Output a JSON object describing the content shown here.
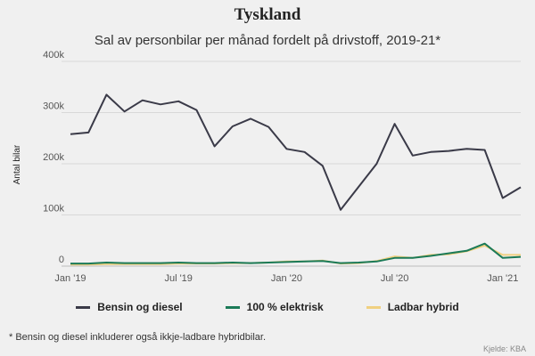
{
  "title": "Tyskland",
  "subtitle": "Sal av personbilar per månad fordelt på drivstoff, 2019-21*",
  "footnote": "* Bensin og diesel inkluderer også ikkje-ladbare hybridbilar.",
  "source": "Kjelde: KBA",
  "colors": {
    "background": "#f0f0f0",
    "grid": "#d8d8d8",
    "bensin": "#3a3a48",
    "elektrisk": "#1b7a57",
    "hybrid": "#f0d080"
  },
  "chart_data": {
    "type": "line",
    "title": "Tyskland",
    "xlabel": "",
    "ylabel": "Antal bilar",
    "ylim": [
      0,
      400000
    ],
    "yticks": [
      0,
      100000,
      200000,
      300000,
      400000
    ],
    "ytick_labels": [
      "0",
      "100k",
      "200k",
      "300k",
      "400k"
    ],
    "xtick_labels": [
      {
        "index": 0,
        "label": "Jan '19"
      },
      {
        "index": 6,
        "label": "Jul '19"
      },
      {
        "index": 12,
        "label": "Jan '20"
      },
      {
        "index": 18,
        "label": "Jul '20"
      },
      {
        "index": 24,
        "label": "Jan '21"
      }
    ],
    "x": [
      "2019-01",
      "2019-02",
      "2019-03",
      "2019-04",
      "2019-05",
      "2019-06",
      "2019-07",
      "2019-08",
      "2019-09",
      "2019-10",
      "2019-11",
      "2019-12",
      "2020-01",
      "2020-02",
      "2020-03",
      "2020-04",
      "2020-05",
      "2020-06",
      "2020-07",
      "2020-08",
      "2020-09",
      "2020-10",
      "2020-11",
      "2020-12",
      "2021-01",
      "2021-02"
    ],
    "series": [
      {
        "name": "Bensin og diesel",
        "color_key": "bensin",
        "values": [
          258000,
          261000,
          335000,
          302000,
          324000,
          316000,
          322000,
          305000,
          234000,
          273000,
          288000,
          272000,
          229000,
          223000,
          196000,
          110000,
          155000,
          200000,
          278000,
          216000,
          223000,
          225000,
          229000,
          227000,
          133000,
          154000
        ]
      },
      {
        "name": "100 % elektrisk",
        "color_key": "elektrisk",
        "values": [
          5000,
          5000,
          7000,
          6000,
          6000,
          6000,
          7000,
          6000,
          6000,
          7000,
          6000,
          7000,
          8000,
          9000,
          10000,
          6000,
          7000,
          9000,
          16000,
          16000,
          20000,
          25000,
          30000,
          44000,
          16000,
          18000
        ]
      },
      {
        "name": "Ladbar hybrid",
        "color_key": "hybrid",
        "values": [
          3000,
          3000,
          4000,
          4000,
          4000,
          4000,
          5000,
          5000,
          5000,
          6000,
          6000,
          7000,
          9000,
          9000,
          11000,
          5000,
          6000,
          10000,
          19000,
          16000,
          22000,
          23000,
          29000,
          40000,
          22000,
          22000
        ]
      }
    ],
    "legend": [
      "Bensin og diesel",
      "100 % elektrisk",
      "Ladbar hybrid"
    ],
    "legend_position": "bottom"
  }
}
